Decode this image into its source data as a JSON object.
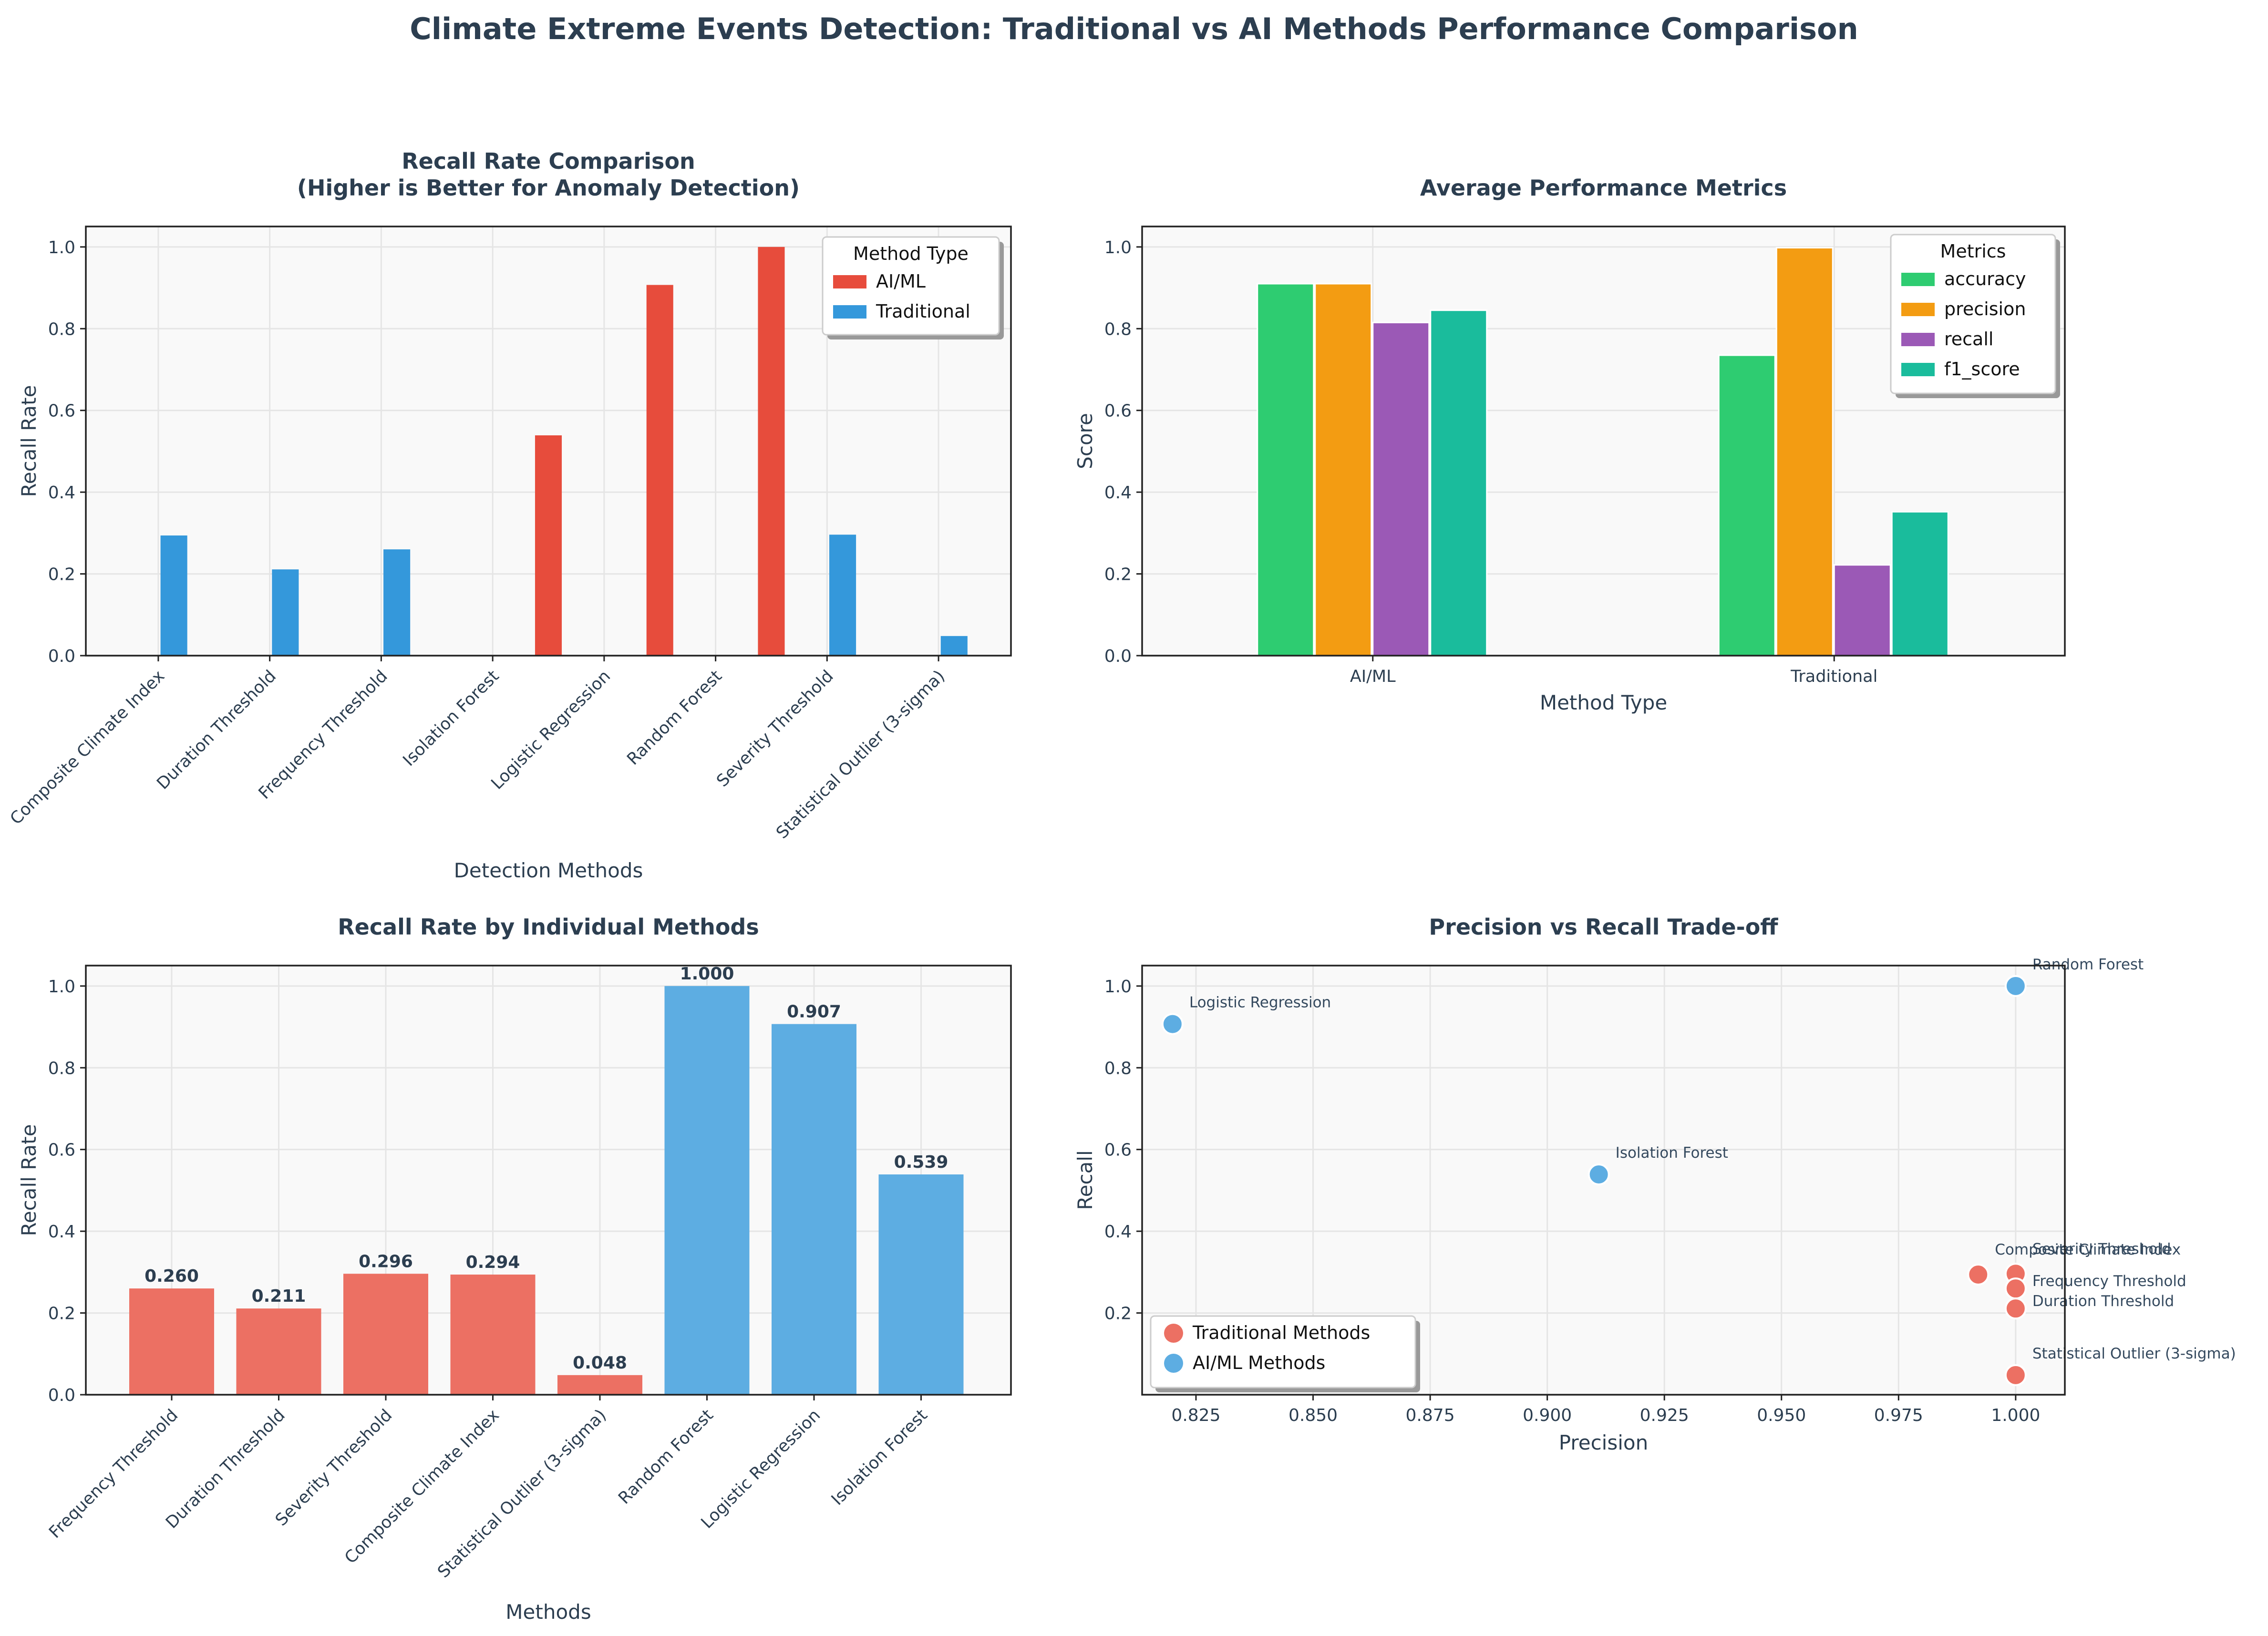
{
  "title": "Climate Extreme Events Detection: Traditional vs AI Methods Performance Comparison",
  "colors": {
    "ai": "#e74c3c",
    "traditional": "#3498db",
    "ai_light": "#ec7063",
    "traditional_light": "#5dade2",
    "text": "#2c3e50",
    "panel_bg": "#f9f9f9",
    "grid": "#e5e5e5",
    "accuracy": "#2ecc71",
    "precision": "#f39c12",
    "recall": "#9b59b6",
    "f1_score": "#1abc9c"
  },
  "chart_data": [
    {
      "type": "bar",
      "title_lines": [
        "Recall Rate Comparison",
        "(Higher is Better for Anomaly Detection)"
      ],
      "xlabel": "Detection Methods",
      "ylabel": "Recall Rate",
      "ylim": [
        0,
        1.05
      ],
      "yticks": [
        0,
        0.2,
        0.4,
        0.6,
        0.8,
        1.0
      ],
      "grid": true,
      "legend": {
        "title": "Method Type",
        "placement": "upper-right",
        "entries": [
          "AI/ML",
          "Traditional"
        ]
      },
      "categories": [
        "Composite Climate Index",
        "Duration Threshold",
        "Frequency Threshold",
        "Isolation Forest",
        "Logistic Regression",
        "Random Forest",
        "Severity Threshold",
        "Statistical Outlier (3-sigma)"
      ],
      "series": [
        {
          "name": "AI/ML",
          "values": [
            null,
            null,
            null,
            0.539,
            0.907,
            1.0,
            null,
            null
          ]
        },
        {
          "name": "Traditional",
          "values": [
            0.294,
            0.211,
            0.26,
            null,
            null,
            null,
            0.296,
            0.048
          ]
        }
      ]
    },
    {
      "type": "bar",
      "title_lines": [
        "Average Performance Metrics"
      ],
      "xlabel": "Method Type",
      "ylabel": "Score",
      "ylim": [
        0,
        1.05
      ],
      "yticks": [
        0,
        0.2,
        0.4,
        0.6,
        0.8,
        1.0
      ],
      "grid": true,
      "legend": {
        "title": "Metrics",
        "placement": "upper-right",
        "entries": [
          "accuracy",
          "precision",
          "recall",
          "f1_score"
        ]
      },
      "categories": [
        "AI/ML",
        "Traditional"
      ],
      "series": [
        {
          "name": "accuracy",
          "values": [
            0.91,
            0.735
          ]
        },
        {
          "name": "precision",
          "values": [
            0.91,
            0.998
          ]
        },
        {
          "name": "recall",
          "values": [
            0.815,
            0.222
          ]
        },
        {
          "name": "f1_score",
          "values": [
            0.845,
            0.352
          ]
        }
      ]
    },
    {
      "type": "bar",
      "title_lines": [
        "Recall Rate by Individual Methods"
      ],
      "xlabel": "Methods",
      "ylabel": "Recall Rate",
      "ylim": [
        0,
        1.05
      ],
      "yticks": [
        0,
        0.2,
        0.4,
        0.6,
        0.8,
        1.0
      ],
      "grid": true,
      "categories": [
        "Frequency Threshold",
        "Duration Threshold",
        "Severity Threshold",
        "Composite Climate Index",
        "Statistical Outlier (3-sigma)",
        "Random Forest",
        "Logistic Regression",
        "Isolation Forest"
      ],
      "values": [
        0.26,
        0.211,
        0.296,
        0.294,
        0.048,
        1.0,
        0.907,
        0.539
      ],
      "labels": [
        "0.260",
        "0.211",
        "0.296",
        "0.294",
        "0.048",
        "1.000",
        "0.907",
        "0.539"
      ],
      "groups": [
        "traditional",
        "traditional",
        "traditional",
        "traditional",
        "traditional",
        "ai",
        "ai",
        "ai"
      ]
    },
    {
      "type": "scatter",
      "title_lines": [
        "Precision vs Recall Trade-off"
      ],
      "xlabel": "Precision",
      "ylabel": "Recall",
      "xlim": [
        0.8135,
        1.0105
      ],
      "ylim": [
        -0.0,
        1.05
      ],
      "xticks": [
        0.825,
        0.85,
        0.875,
        0.9,
        0.925,
        0.95,
        0.975,
        1.0
      ],
      "xtick_labels": [
        "0.825",
        "0.850",
        "0.875",
        "0.900",
        "0.925",
        "0.950",
        "0.975",
        "1.000"
      ],
      "yticks": [
        0.2,
        0.4,
        0.6,
        0.8,
        1.0
      ],
      "grid": true,
      "legend": {
        "placement": "lower-left",
        "entries": [
          "Traditional Methods",
          "AI/ML Methods"
        ]
      },
      "series": [
        {
          "name": "Traditional Methods",
          "points": [
            {
              "x": 0.992,
              "y": 0.294,
              "label": "Composite Climate Index"
            },
            {
              "x": 1.0,
              "y": 0.296,
              "label": "Severity Threshold"
            },
            {
              "x": 1.0,
              "y": 0.26,
              "label": "Frequency Threshold"
            },
            {
              "x": 1.0,
              "y": 0.211,
              "label": "Duration Threshold"
            },
            {
              "x": 1.0,
              "y": 0.048,
              "label": "Statistical Outlier (3-sigma)"
            }
          ]
        },
        {
          "name": "AI/ML Methods",
          "points": [
            {
              "x": 1.0,
              "y": 1.0,
              "label": "Random Forest"
            },
            {
              "x": 0.82,
              "y": 0.907,
              "label": "Logistic Regression"
            },
            {
              "x": 0.911,
              "y": 0.539,
              "label": "Isolation Forest"
            }
          ]
        }
      ]
    }
  ]
}
